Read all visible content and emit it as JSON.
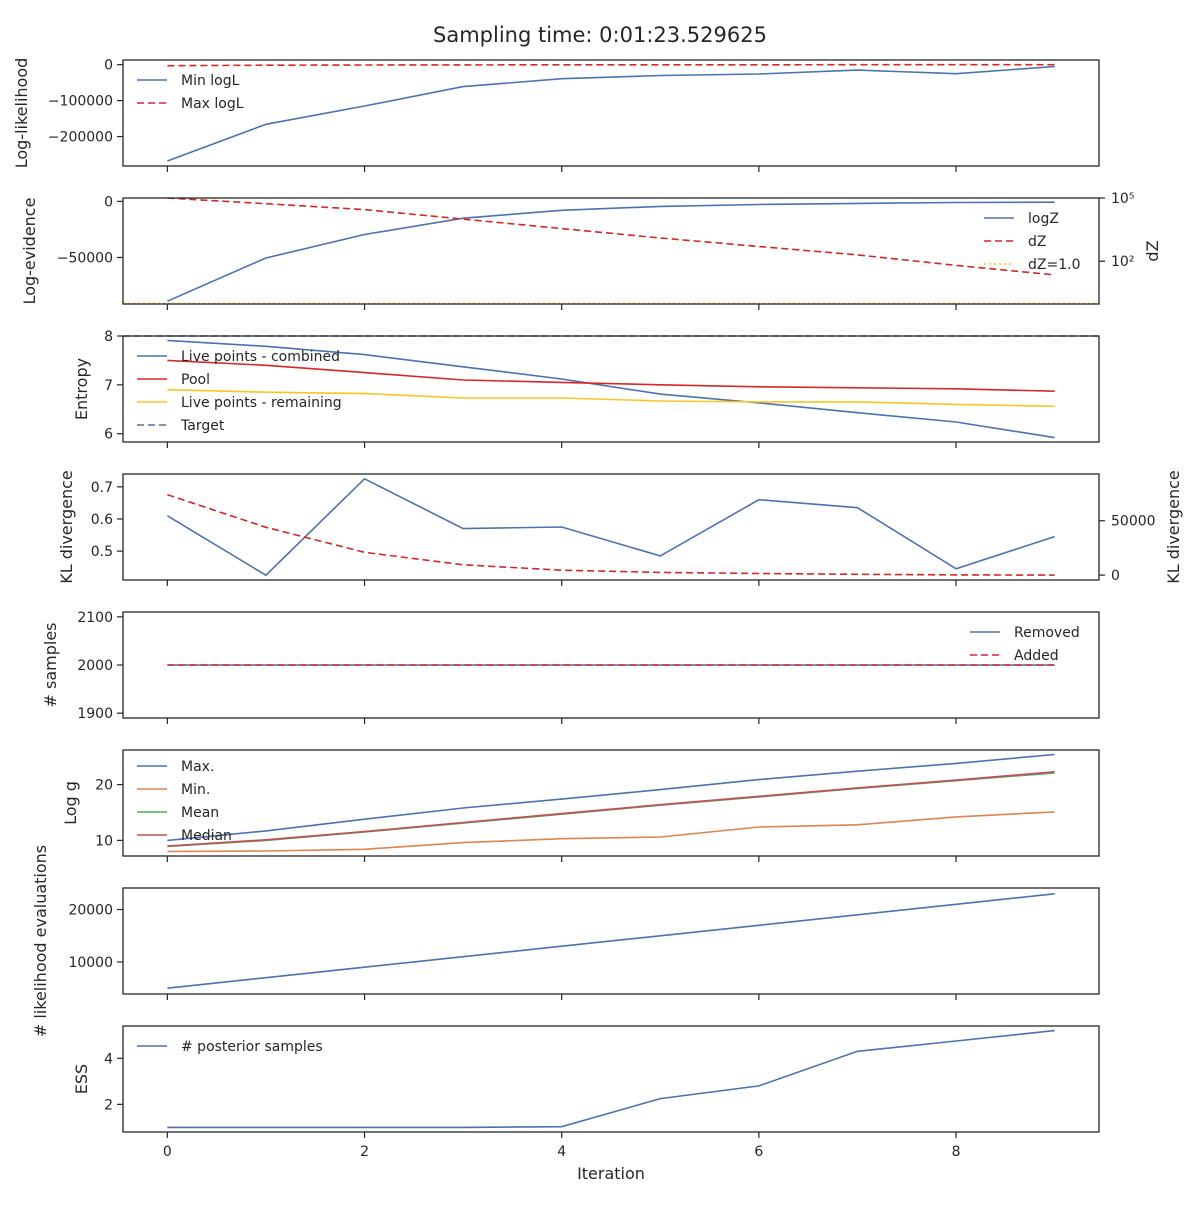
{
  "title": "Sampling time: 0:01:23.529625",
  "colors": {
    "blue": "#4c72b0",
    "red_dashed": "#d62728",
    "red": "#d62728",
    "yellow": "#f8c623",
    "orange": "#dd8452",
    "green": "#55a868",
    "crimson": "#c44e52"
  },
  "chart_data": [
    {
      "type": "line",
      "ylabel": "Log-likelihood",
      "xlabel": "",
      "xlim": [
        -0.45,
        9.45
      ],
      "ylim": [
        -282000,
        13000
      ],
      "yticks": [
        0,
        -100000,
        -200000
      ],
      "yticklabels": [
        "0",
        "−100000",
        "−200000"
      ],
      "legend": "upper-left",
      "series": [
        {
          "name": "Min logL",
          "style": "solid",
          "color": "blue",
          "x": [
            0,
            1,
            2,
            3,
            4,
            5,
            6,
            7,
            8,
            9
          ],
          "y": [
            -268000,
            -166000,
            -115000,
            -61000,
            -39000,
            -30000,
            -26000,
            -15000,
            -25000,
            -5000
          ]
        },
        {
          "name": "Max logL",
          "style": "dashed",
          "color": "red_dashed",
          "x": [
            0,
            1,
            2,
            3,
            4,
            5,
            6,
            7,
            8,
            9
          ],
          "y": [
            -3000,
            -1500,
            -800,
            -500,
            -400,
            -300,
            -250,
            -200,
            -180,
            -150
          ]
        }
      ]
    },
    {
      "type": "line",
      "ylabel": "Log-evidence",
      "y2label": "dZ",
      "ylim": [
        -91500,
        3000
      ],
      "yticks": [
        0,
        -50000
      ],
      "yticklabels": [
        "0",
        "−50000"
      ],
      "y2scale": "log",
      "y2lim_log10": [
        -0.03,
        5.0
      ],
      "y2ticks_log10": [
        5,
        2
      ],
      "y2ticklabels": [
        "10⁵",
        "10²"
      ],
      "legend": "right",
      "series": [
        {
          "name": "logZ",
          "style": "solid",
          "color": "blue",
          "axis": "left",
          "x": [
            0,
            1,
            2,
            3,
            4,
            5,
            6,
            7,
            8,
            9
          ],
          "y": [
            -89000,
            -50500,
            -29500,
            -15000,
            -8000,
            -4500,
            -2800,
            -1800,
            -1000,
            -700
          ]
        },
        {
          "name": "dZ",
          "style": "dashed",
          "color": "red_dashed",
          "axis": "right",
          "x": [
            0,
            1,
            2,
            3,
            4,
            5,
            6,
            7,
            8,
            9
          ],
          "y_log10": [
            5.0,
            4.73,
            4.45,
            4.0,
            3.55,
            3.1,
            2.7,
            2.3,
            1.8,
            1.35
          ]
        },
        {
          "name": "dZ=1.0",
          "style": "dotted",
          "color": "yellow",
          "axis": "right",
          "x": [
            -0.45,
            9.45
          ],
          "y_log10": [
            0,
            0
          ]
        }
      ]
    },
    {
      "type": "line",
      "ylabel": "Entropy",
      "ylim": [
        5.83,
        8.0
      ],
      "yticks": [
        8,
        7,
        6
      ],
      "yticklabels": [
        "8",
        "7",
        "6"
      ],
      "legend": "upper-left",
      "series": [
        {
          "name": "Live points - combined",
          "style": "solid",
          "color": "blue",
          "x": [
            0,
            1,
            2,
            3,
            4,
            5,
            6,
            7,
            8,
            9
          ],
          "y": [
            7.91,
            7.79,
            7.62,
            7.37,
            7.12,
            6.81,
            6.63,
            6.43,
            6.24,
            5.92
          ]
        },
        {
          "name": "Pool",
          "style": "solid",
          "color": "red",
          "x": [
            0,
            1,
            2,
            3,
            4,
            5,
            6,
            7,
            8,
            9
          ],
          "y": [
            7.5,
            7.4,
            7.25,
            7.1,
            7.05,
            7.0,
            6.96,
            6.94,
            6.92,
            6.87
          ]
        },
        {
          "name": "Live points - remaining",
          "style": "solid",
          "color": "yellow",
          "x": [
            0,
            1,
            2,
            3,
            4,
            5,
            6,
            7,
            8,
            9
          ],
          "y": [
            6.9,
            6.85,
            6.82,
            6.73,
            6.73,
            6.67,
            6.65,
            6.65,
            6.6,
            6.56
          ]
        },
        {
          "name": "Target",
          "style": "dashed",
          "color": "blue",
          "x": [
            -0.45,
            9.45
          ],
          "y": [
            8.0,
            8.0
          ]
        }
      ]
    },
    {
      "type": "line",
      "ylabel": "KL divergence",
      "y2label": "KL divergence",
      "ylim": [
        0.41,
        0.74
      ],
      "yticks": [
        0.7,
        0.6,
        0.5
      ],
      "yticklabels": [
        "0.7",
        "0.6",
        "0.5"
      ],
      "y2lim": [
        -4500,
        93000
      ],
      "y2ticks": [
        50000,
        0
      ],
      "y2ticklabels": [
        "50000",
        "0"
      ],
      "series": [
        {
          "name": "",
          "style": "solid",
          "color": "blue",
          "axis": "left",
          "x": [
            0,
            1,
            2,
            3,
            4,
            5,
            6,
            7,
            8,
            9
          ],
          "y": [
            0.61,
            0.425,
            0.725,
            0.57,
            0.575,
            0.485,
            0.66,
            0.635,
            0.445,
            0.545
          ]
        },
        {
          "name": "",
          "style": "dashed",
          "color": "red_dashed",
          "axis": "right",
          "x": [
            0,
            1,
            2,
            3,
            4,
            5,
            6,
            7,
            8,
            9
          ],
          "y": [
            74000,
            44000,
            21000,
            9500,
            4500,
            2500,
            1500,
            700,
            200,
            0
          ]
        }
      ]
    },
    {
      "type": "line",
      "ylabel": "# samples",
      "ylim": [
        1890,
        2110
      ],
      "yticks": [
        2100,
        2000,
        1900
      ],
      "yticklabels": [
        "2100",
        "2000",
        "1900"
      ],
      "legend": "upper-right",
      "series": [
        {
          "name": "Removed",
          "style": "solid",
          "color": "blue",
          "x": [
            0,
            1,
            2,
            3,
            4,
            5,
            6,
            7,
            8,
            9
          ],
          "y": [
            2000,
            2000,
            2000,
            2000,
            2000,
            2000,
            2000,
            2000,
            2000,
            2000
          ]
        },
        {
          "name": "Added",
          "style": "dashed",
          "color": "red_dashed",
          "x": [
            0,
            1,
            2,
            3,
            4,
            5,
            6,
            7,
            8,
            9
          ],
          "y": [
            2000,
            2000,
            2000,
            2000,
            2000,
            2000,
            2000,
            2000,
            2000,
            2000
          ]
        }
      ]
    },
    {
      "type": "line",
      "ylabel": "Log g",
      "ylim": [
        7.2,
        26.2
      ],
      "yticks": [
        20,
        10
      ],
      "yticklabels": [
        "20",
        "10"
      ],
      "legend": "upper-left",
      "series": [
        {
          "name": "Max.",
          "style": "solid",
          "color": "blue",
          "x": [
            0,
            1,
            2,
            3,
            4,
            5,
            6,
            7,
            8,
            9
          ],
          "y": [
            10.0,
            11.7,
            13.8,
            15.8,
            17.4,
            19.1,
            20.9,
            22.4,
            23.8,
            25.4
          ]
        },
        {
          "name": "Min.",
          "style": "solid",
          "color": "orange",
          "x": [
            0,
            1,
            2,
            3,
            4,
            5,
            6,
            7,
            8,
            9
          ],
          "y": [
            8.0,
            8.1,
            8.4,
            9.6,
            10.3,
            10.6,
            12.4,
            12.8,
            14.2,
            15.1
          ]
        },
        {
          "name": "Mean",
          "style": "solid",
          "color": "green",
          "x": [
            0,
            1,
            2,
            3,
            4,
            5,
            6,
            7,
            8,
            9
          ],
          "y": [
            8.9,
            10.0,
            11.5,
            13.1,
            14.7,
            16.3,
            17.8,
            19.3,
            20.7,
            22.1
          ]
        },
        {
          "name": "Median",
          "style": "solid",
          "color": "crimson",
          "x": [
            0,
            1,
            2,
            3,
            4,
            5,
            6,
            7,
            8,
            9
          ],
          "y": [
            9.0,
            10.1,
            11.6,
            13.2,
            14.8,
            16.4,
            17.9,
            19.4,
            20.8,
            22.3
          ]
        }
      ]
    },
    {
      "type": "line",
      "ylabel": "# likelihood evaluations",
      "ylim": [
        3900,
        24100
      ],
      "yticks": [
        20000,
        10000
      ],
      "yticklabels": [
        "20000",
        "10000"
      ],
      "series": [
        {
          "name": "",
          "style": "solid",
          "color": "blue",
          "x": [
            0,
            1,
            2,
            3,
            4,
            5,
            6,
            7,
            8,
            9
          ],
          "y": [
            5000,
            7000,
            9000,
            11000,
            13000,
            15000,
            17000,
            19000,
            21000,
            23000
          ]
        }
      ]
    },
    {
      "type": "line",
      "ylabel": "ESS",
      "xlabel": "Iteration",
      "ylim": [
        0.8,
        5.4
      ],
      "yticks": [
        4,
        2
      ],
      "yticklabels": [
        "4",
        "2"
      ],
      "legend": "upper-left",
      "series": [
        {
          "name": "# posterior samples",
          "style": "solid",
          "color": "blue",
          "x": [
            0,
            1,
            2,
            3,
            4,
            5,
            6,
            7,
            8,
            9
          ],
          "y": [
            1.0,
            1.0,
            1.0,
            1.0,
            1.03,
            2.25,
            2.8,
            4.3,
            4.75,
            5.2
          ]
        }
      ]
    }
  ],
  "xaxis": {
    "xlim": [
      -0.45,
      9.45
    ],
    "ticks": [
      0,
      2,
      4,
      6,
      8
    ],
    "ticklabels": [
      "0",
      "2",
      "4",
      "6",
      "8"
    ],
    "label": "Iteration"
  }
}
